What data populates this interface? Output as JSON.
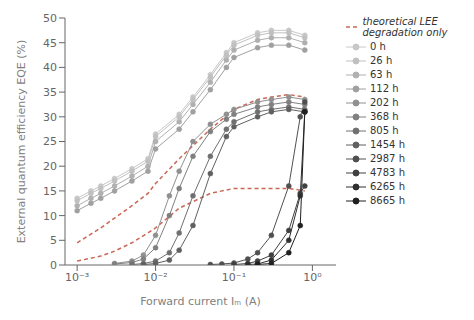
{
  "chart_data": {
    "type": "line",
    "x_label": "Forward current Iₘ (A)",
    "y_label": "External quantum efficiency EQE (%)",
    "log": "x",
    "grid": false,
    "legend": "right",
    "xlim": [
      0.0007,
      2.0
    ],
    "xticks": [
      {
        "value": 0.001,
        "label": "10⁻³"
      },
      {
        "value": 0.01,
        "label": "10⁻²"
      },
      {
        "value": 0.1,
        "label": "10⁻¹"
      },
      {
        "value": 1,
        "label": "10⁰"
      }
    ],
    "ylim": [
      0,
      50
    ],
    "yticks": [
      0,
      5,
      10,
      15,
      20,
      25,
      30,
      35,
      40,
      45,
      50
    ],
    "series": [
      {
        "name": "theoretical LEE degradation only",
        "color": "#cc6655",
        "line_style": "dashed",
        "x": [
          0.001,
          0.002,
          0.003,
          0.005,
          0.008,
          0.01,
          0.02,
          0.05,
          0.1,
          0.2,
          0.3,
          0.5,
          0.8
        ],
        "values": [
          4.5,
          7.5,
          9.5,
          12.0,
          14.5,
          16.5,
          21.5,
          27.5,
          31.5,
          33.5,
          34.0,
          34.5,
          34.0
        ]
      },
      {
        "color": "#cc6655",
        "line_style": "dashed",
        "x": [
          0.001,
          0.002,
          0.003,
          0.005,
          0.008,
          0.01,
          0.02,
          0.05,
          0.1,
          0.2,
          0.3,
          0.5,
          0.8
        ],
        "values": [
          0.8,
          1.8,
          2.8,
          4.5,
          6.5,
          7.5,
          11.5,
          14.5,
          15.5,
          15.5,
          15.5,
          15.5,
          15.0
        ]
      },
      {
        "name": "0 h",
        "color": "#c8c8c8",
        "marker": "circle",
        "x": [
          0.001,
          0.0015,
          0.002,
          0.003,
          0.005,
          0.008,
          0.01,
          0.02,
          0.03,
          0.05,
          0.08,
          0.1,
          0.2,
          0.3,
          0.5,
          0.8
        ],
        "values": [
          13.5,
          15.0,
          16.0,
          17.5,
          19.5,
          21.5,
          26.5,
          30.5,
          34.0,
          38.5,
          43.0,
          45.0,
          47.0,
          47.5,
          47.5,
          46.5
        ]
      },
      {
        "name": "26 h",
        "color": "#c0c0c0",
        "marker": "circle",
        "x": [
          0.001,
          0.0015,
          0.002,
          0.003,
          0.005,
          0.008,
          0.01,
          0.02,
          0.03,
          0.05,
          0.08,
          0.1,
          0.2,
          0.3,
          0.5,
          0.8
        ],
        "values": [
          13.0,
          14.5,
          15.5,
          17.0,
          19.0,
          21.0,
          26.0,
          30.0,
          33.5,
          38.0,
          42.5,
          44.5,
          46.5,
          47.0,
          47.0,
          46.0
        ]
      },
      {
        "name": "63 h",
        "color": "#b0b0b0",
        "marker": "circle",
        "x": [
          0.001,
          0.0015,
          0.002,
          0.003,
          0.005,
          0.008,
          0.01,
          0.02,
          0.03,
          0.05,
          0.08,
          0.1,
          0.2,
          0.3,
          0.5,
          0.8
        ],
        "values": [
          12.0,
          13.5,
          14.5,
          16.0,
          18.0,
          20.0,
          25.0,
          29.0,
          32.5,
          37.0,
          41.5,
          43.5,
          45.5,
          46.0,
          46.0,
          45.0
        ]
      },
      {
        "name": "112 h",
        "color": "#a0a0a0",
        "marker": "circle",
        "x": [
          0.001,
          0.0015,
          0.002,
          0.003,
          0.005,
          0.008,
          0.01,
          0.02,
          0.03,
          0.05,
          0.08,
          0.1,
          0.2,
          0.3,
          0.5,
          0.8
        ],
        "values": [
          11.0,
          12.5,
          13.5,
          15.0,
          17.0,
          19.0,
          23.5,
          27.5,
          31.0,
          35.5,
          40.0,
          42.0,
          44.0,
          44.5,
          44.5,
          43.5
        ]
      },
      {
        "name": "202 h",
        "color": "#909090",
        "marker": "circle",
        "x": [
          0.003,
          0.005,
          0.007,
          0.01,
          0.015,
          0.02,
          0.03,
          0.05,
          0.08,
          0.1,
          0.2,
          0.3,
          0.5,
          0.8
        ],
        "values": [
          0.3,
          0.8,
          2.0,
          6.0,
          14.0,
          19.0,
          25.0,
          28.5,
          30.5,
          31.5,
          33.0,
          33.5,
          34.0,
          33.5
        ]
      },
      {
        "name": "368 h",
        "color": "#808080",
        "marker": "circle",
        "x": [
          0.003,
          0.005,
          0.007,
          0.01,
          0.015,
          0.02,
          0.03,
          0.05,
          0.08,
          0.1,
          0.2,
          0.3,
          0.5,
          0.8
        ],
        "values": [
          0.2,
          0.5,
          1.2,
          3.5,
          10.0,
          15.5,
          22.0,
          27.0,
          29.5,
          30.5,
          32.0,
          32.5,
          33.0,
          32.5
        ]
      },
      {
        "name": "805 h",
        "color": "#707070",
        "marker": "circle",
        "x": [
          0.005,
          0.007,
          0.01,
          0.015,
          0.02,
          0.03,
          0.05,
          0.08,
          0.1,
          0.2,
          0.3,
          0.5,
          0.8
        ],
        "values": [
          0.1,
          0.3,
          0.8,
          2.5,
          6.5,
          14.0,
          22.0,
          27.5,
          29.0,
          31.0,
          31.5,
          32.0,
          31.5
        ]
      },
      {
        "name": "1454 h",
        "color": "#606060",
        "marker": "circle",
        "x": [
          0.007,
          0.01,
          0.015,
          0.02,
          0.03,
          0.05,
          0.08,
          0.1,
          0.2,
          0.3,
          0.5,
          0.8
        ],
        "values": [
          0.1,
          0.3,
          1.0,
          3.0,
          8.0,
          18.5,
          26.0,
          28.0,
          30.0,
          31.0,
          31.5,
          31.0
        ]
      },
      {
        "name": "2987 h",
        "color": "#505050",
        "marker": "circle",
        "x": [
          0.05,
          0.07,
          0.1,
          0.15,
          0.2,
          0.3,
          0.5,
          0.7,
          0.8
        ],
        "values": [
          0.1,
          0.2,
          0.4,
          1.2,
          2.5,
          6.0,
          16.0,
          30.0,
          33.0
        ]
      },
      {
        "name": "4783 h",
        "color": "#404040",
        "marker": "circle",
        "x": [
          0.1,
          0.15,
          0.2,
          0.3,
          0.5,
          0.7,
          0.8
        ],
        "values": [
          0.1,
          0.3,
          0.8,
          2.0,
          7.0,
          14.5,
          16.0
        ]
      },
      {
        "name": "6265 h",
        "color": "#303030",
        "marker": "circle",
        "x": [
          0.15,
          0.2,
          0.3,
          0.5,
          0.7,
          0.8
        ],
        "values": [
          0.1,
          0.2,
          1.0,
          5.0,
          14.0,
          31.0
        ]
      },
      {
        "name": "8665 h",
        "color": "#202020",
        "marker": "circle",
        "x": [
          0.2,
          0.3,
          0.5,
          0.7,
          0.8
        ],
        "values": [
          0.1,
          0.3,
          2.5,
          8.0,
          31.0
        ]
      }
    ]
  }
}
